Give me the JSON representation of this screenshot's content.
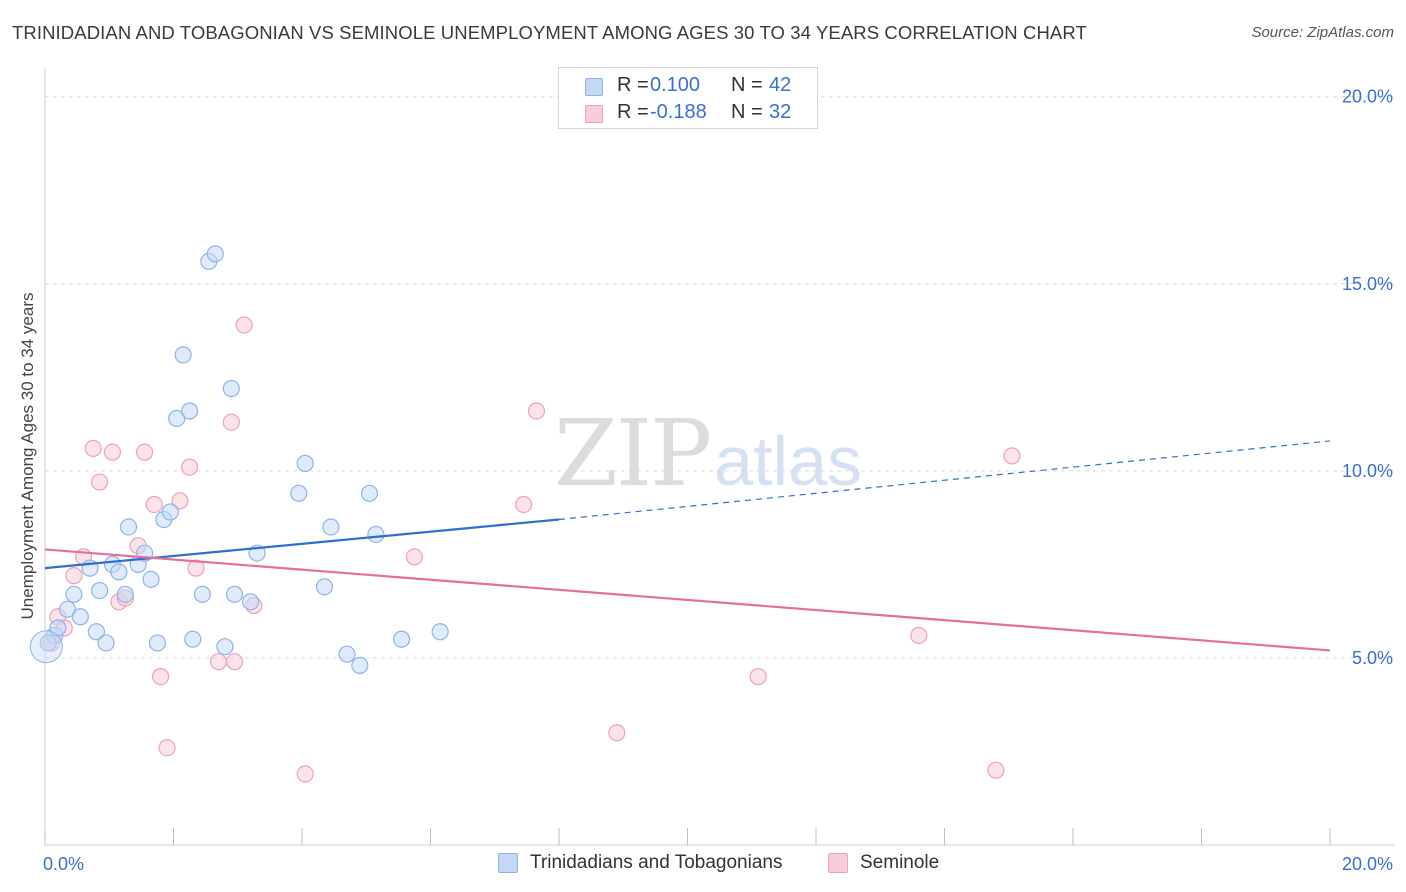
{
  "title": "TRINIDADIAN AND TOBAGONIAN VS SEMINOLE UNEMPLOYMENT AMONG AGES 30 TO 34 YEARS CORRELATION CHART",
  "source": "Source: ZipAtlas.com",
  "watermark": {
    "zip": "ZIP",
    "atlas": "atlas"
  },
  "legend": {
    "r_label": "R =",
    "n_label": "N =",
    "series": [
      {
        "r": "0.100",
        "n": "42"
      },
      {
        "r": "-0.188",
        "n": "32"
      }
    ]
  },
  "bottom_legend": [
    "Trinidadians and Tobagonians",
    "Seminole"
  ],
  "colors": {
    "blue_fill": "#c5d9f5",
    "blue_stroke": "#8fb3e8",
    "blue_line": "#2f6fcf",
    "pink_fill": "#f8ccd9",
    "pink_stroke": "#eea2b8",
    "pink_line": "#e56f98",
    "axis_text": "#3a6fd0",
    "grid": "#d9d9d9"
  },
  "chart_data": {
    "type": "scatter",
    "title": "TRINIDADIAN AND TOBAGONIAN VS SEMINOLE UNEMPLOYMENT AMONG AGES 30 TO 34 YEARS CORRELATION CHART",
    "xlabel": "",
    "ylabel": "Unemployment Among Ages 30 to 34 years",
    "xlim": [
      0,
      20
    ],
    "ylim": [
      0,
      20.5
    ],
    "x_tick_labels": [
      {
        "value": 0,
        "label": "0.0%"
      },
      {
        "value": 20,
        "label": "20.0%"
      }
    ],
    "y_tick_labels": [
      {
        "value": 5,
        "label": "5.0%"
      },
      {
        "value": 10,
        "label": "10.0%"
      },
      {
        "value": 15,
        "label": "15.0%"
      },
      {
        "value": 20,
        "label": "20.0%"
      }
    ],
    "series": [
      {
        "name": "Trinidadians and Tobagonians",
        "r": 0.1,
        "n": 42,
        "trend": {
          "x0": 0,
          "y0": 7.4,
          "x1": 8.0,
          "y1": 8.7,
          "dash_to_x": 20,
          "dash_to_y": 10.8
        },
        "points": [
          [
            0.15,
            5.6
          ],
          [
            0.2,
            5.8
          ],
          [
            0.35,
            6.3
          ],
          [
            0.45,
            6.7
          ],
          [
            0.55,
            6.1
          ],
          [
            0.7,
            7.4
          ],
          [
            0.8,
            5.7
          ],
          [
            0.85,
            6.8
          ],
          [
            0.95,
            5.4
          ],
          [
            1.05,
            7.5
          ],
          [
            1.15,
            7.3
          ],
          [
            1.25,
            6.7
          ],
          [
            1.3,
            8.5
          ],
          [
            1.45,
            7.5
          ],
          [
            1.55,
            7.8
          ],
          [
            1.65,
            7.1
          ],
          [
            1.75,
            5.4
          ],
          [
            1.85,
            8.7
          ],
          [
            1.95,
            8.9
          ],
          [
            2.05,
            11.4
          ],
          [
            2.15,
            13.1
          ],
          [
            2.25,
            11.6
          ],
          [
            2.3,
            5.5
          ],
          [
            2.45,
            6.7
          ],
          [
            2.55,
            15.6
          ],
          [
            2.65,
            15.8
          ],
          [
            2.8,
            5.3
          ],
          [
            2.9,
            12.2
          ],
          [
            2.95,
            6.7
          ],
          [
            3.2,
            6.5
          ],
          [
            3.3,
            7.8
          ],
          [
            3.95,
            9.4
          ],
          [
            4.05,
            10.2
          ],
          [
            4.35,
            6.9
          ],
          [
            4.45,
            8.5
          ],
          [
            4.7,
            5.1
          ],
          [
            4.9,
            4.8
          ],
          [
            5.05,
            9.4
          ],
          [
            5.15,
            8.3
          ],
          [
            5.55,
            5.5
          ],
          [
            6.15,
            5.7
          ],
          [
            0.05,
            5.4
          ]
        ]
      },
      {
        "name": "Seminole",
        "r": -0.188,
        "n": 32,
        "trend": {
          "x0": 0,
          "y0": 7.9,
          "x1": 20,
          "y1": 5.2
        },
        "points": [
          [
            0.1,
            5.4
          ],
          [
            0.2,
            6.1
          ],
          [
            0.3,
            5.8
          ],
          [
            0.45,
            7.2
          ],
          [
            0.6,
            7.7
          ],
          [
            0.75,
            10.6
          ],
          [
            0.85,
            9.7
          ],
          [
            1.05,
            10.5
          ],
          [
            1.15,
            6.5
          ],
          [
            1.25,
            6.6
          ],
          [
            1.45,
            8.0
          ],
          [
            1.55,
            10.5
          ],
          [
            1.7,
            9.1
          ],
          [
            1.8,
            4.5
          ],
          [
            1.9,
            2.6
          ],
          [
            2.1,
            9.2
          ],
          [
            2.25,
            10.1
          ],
          [
            2.35,
            7.4
          ],
          [
            2.7,
            4.9
          ],
          [
            2.9,
            11.3
          ],
          [
            2.95,
            4.9
          ],
          [
            3.1,
            13.9
          ],
          [
            3.25,
            6.4
          ],
          [
            4.05,
            1.9
          ],
          [
            5.75,
            7.7
          ],
          [
            7.45,
            9.1
          ],
          [
            7.65,
            11.6
          ],
          [
            8.9,
            3.0
          ],
          [
            11.1,
            4.5
          ],
          [
            13.6,
            5.6
          ],
          [
            14.8,
            2.0
          ],
          [
            15.05,
            10.4
          ]
        ]
      }
    ]
  }
}
